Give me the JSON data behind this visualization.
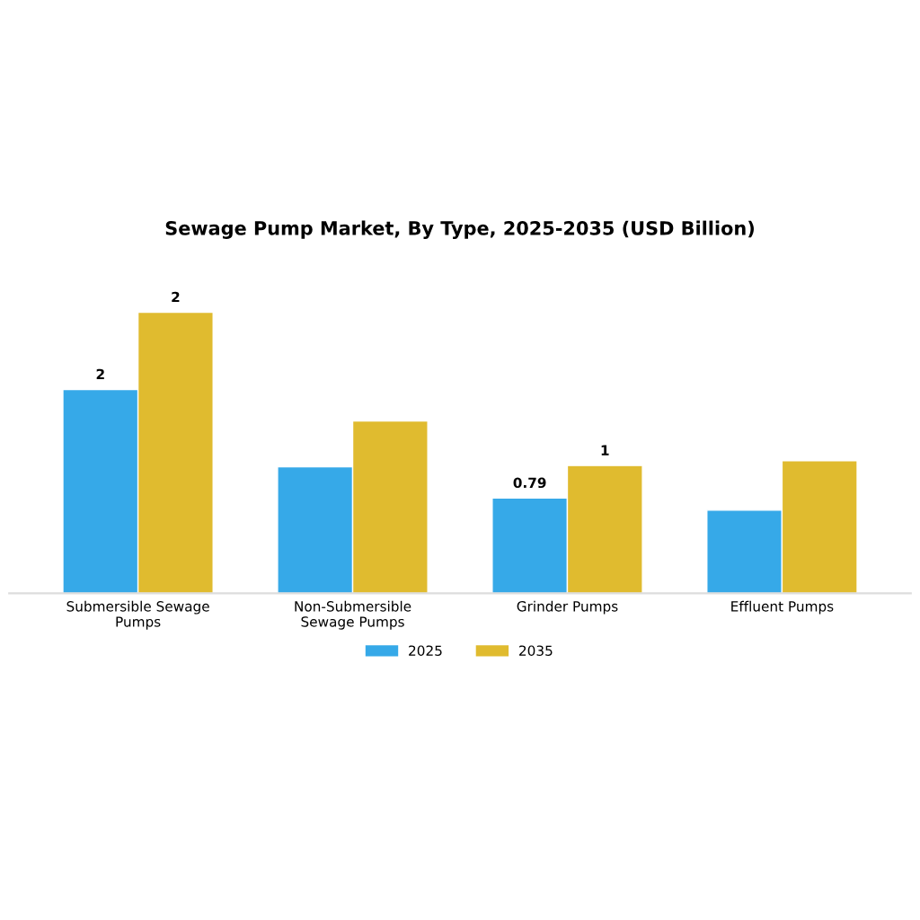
{
  "chart_data": {
    "type": "bar",
    "title": "Sewage Pump Market, By Type, 2025-2035 (USD Billion)",
    "categories": [
      "Submersible Sewage\nPumps",
      "Non-Submersible\nSewage Pumps",
      "Grinder Pumps",
      "Effluent Pumps"
    ],
    "legend": "bottom",
    "grid": false,
    "series": [
      {
        "name": "2025",
        "color": "#36a9e8",
        "values": [
          1.69,
          1.05,
          0.79,
          0.69
        ],
        "value_labels": [
          "2",
          null,
          "0.79",
          null
        ]
      },
      {
        "name": "2035",
        "color": "#e0bb2f",
        "values": [
          2.33,
          1.43,
          1.06,
          1.1
        ],
        "value_labels": [
          "2",
          null,
          "1",
          null
        ]
      }
    ]
  }
}
